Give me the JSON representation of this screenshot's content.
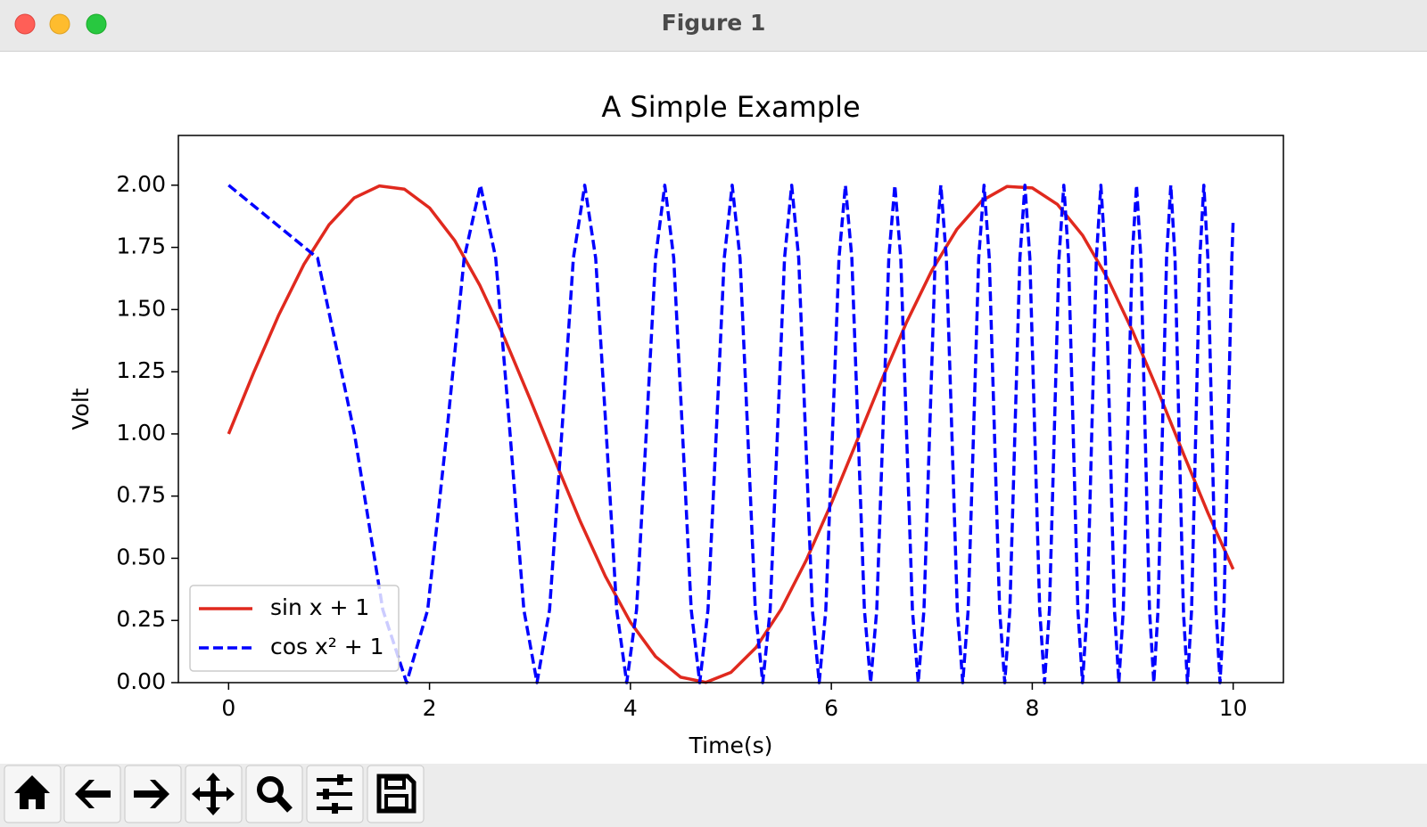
{
  "window": {
    "title": "Figure 1"
  },
  "chart_data": {
    "type": "line",
    "title": "A Simple Example",
    "x_label": "Time(s)",
    "y_label": "Volt",
    "xlim": [
      -0.5,
      10.5
    ],
    "ylim": [
      0,
      2.2
    ],
    "xticks": [
      0,
      2,
      4,
      6,
      8,
      10
    ],
    "yticks": [
      {
        "value": 0,
        "label": "0.00"
      },
      {
        "value": 0.25,
        "label": "0.25"
      },
      {
        "value": 0.5,
        "label": "0.50"
      },
      {
        "value": 0.75,
        "label": "0.75"
      },
      {
        "value": 1,
        "label": "1.00"
      },
      {
        "value": 1.25,
        "label": "1.25"
      },
      {
        "value": 1.5,
        "label": "1.50"
      },
      {
        "value": 1.75,
        "label": "1.75"
      },
      {
        "value": 2,
        "label": "2.00"
      }
    ],
    "grid": false,
    "legend": "lower left",
    "series": [
      {
        "name": "sin x + 1",
        "color": "#e0291e",
        "linestyle": "solid",
        "x": [
          0,
          0.25,
          0.5,
          0.75,
          1,
          1.25,
          1.5,
          1.75,
          2,
          2.25,
          2.5,
          2.75,
          3,
          3.25,
          3.5,
          3.75,
          4,
          4.25,
          4.5,
          4.75,
          5,
          5.25,
          5.5,
          5.75,
          6,
          6.25,
          6.5,
          6.75,
          7,
          7.25,
          7.5,
          7.75,
          8,
          8.25,
          8.5,
          8.75,
          9,
          9.25,
          9.5,
          9.75,
          10
        ],
        "values": [
          1,
          1.247,
          1.479,
          1.682,
          1.841,
          1.949,
          1.997,
          1.984,
          1.909,
          1.778,
          1.598,
          1.382,
          1.141,
          0.892,
          0.649,
          0.428,
          0.243,
          0.105,
          0.022,
          0.001,
          0.041,
          0.141,
          0.295,
          0.492,
          0.721,
          0.967,
          1.215,
          1.45,
          1.657,
          1.823,
          1.938,
          1.995,
          1.989,
          1.923,
          1.799,
          1.625,
          1.412,
          1.174,
          0.925,
          0.681,
          0.456
        ]
      },
      {
        "name": "cos x² + 1",
        "color": "#0000ff",
        "linestyle": "dashed",
        "x": [
          0,
          0.886,
          1.253,
          1.535,
          1.772,
          1.982,
          2.171,
          2.345,
          2.507,
          2.659,
          2.802,
          2.939,
          3.07,
          3.195,
          3.316,
          3.432,
          3.545,
          3.654,
          3.76,
          3.863,
          3.963,
          4.061,
          4.157,
          4.25,
          4.342,
          4.431,
          4.519,
          4.605,
          4.69,
          4.772,
          4.854,
          4.934,
          5.013,
          5.091,
          5.168,
          5.243,
          5.317,
          5.391,
          5.463,
          5.534,
          5.605,
          5.675,
          5.743,
          5.811,
          5.879,
          5.945,
          6.011,
          6.076,
          6.14,
          6.204,
          6.267,
          6.329,
          6.391,
          6.452,
          6.512,
          6.572,
          6.632,
          6.691,
          6.749,
          6.807,
          6.865,
          6.922,
          6.978,
          7.034,
          7.09,
          7.145,
          7.2,
          7.254,
          7.308,
          7.362,
          7.415,
          7.467,
          7.52,
          7.572,
          7.624,
          7.675,
          7.726,
          7.777,
          7.827,
          7.877,
          7.927,
          7.976,
          8.025,
          8.074,
          8.122,
          8.171,
          8.219,
          8.266,
          8.314,
          8.361,
          8.408,
          8.454,
          8.5,
          8.547,
          8.592,
          8.638,
          8.683,
          8.728,
          8.773,
          8.818,
          8.862,
          8.906,
          8.95,
          8.994,
          9.038,
          9.081,
          9.124,
          9.167,
          9.21,
          9.252,
          9.295,
          9.337,
          9.379,
          9.421,
          9.462,
          9.504,
          9.545,
          9.586,
          9.627,
          9.668,
          9.708,
          9.748,
          9.789,
          9.829,
          9.869,
          9.908,
          9.948,
          9.987,
          10
        ],
        "values": [
          2,
          1.707,
          1,
          0.293,
          0,
          0.293,
          1,
          1.707,
          2,
          1.707,
          1,
          0.293,
          0,
          0.293,
          1,
          1.707,
          2,
          1.707,
          1,
          0.293,
          0,
          0.293,
          1,
          1.707,
          2,
          1.707,
          1,
          0.293,
          0,
          0.293,
          1,
          1.707,
          2,
          1.707,
          1,
          0.293,
          0,
          0.293,
          1,
          1.707,
          2,
          1.707,
          1,
          0.293,
          0,
          0.293,
          1,
          1.707,
          2,
          1.707,
          1,
          0.293,
          0,
          0.293,
          1,
          1.707,
          2,
          1.707,
          1,
          0.293,
          0,
          0.293,
          1,
          1.707,
          2,
          1.707,
          1,
          0.293,
          0,
          0.293,
          1,
          1.707,
          2,
          1.707,
          1,
          0.293,
          0,
          0.293,
          1,
          1.707,
          2,
          1.707,
          1,
          0.293,
          0,
          0.293,
          1,
          1.707,
          2,
          1.707,
          1,
          0.293,
          0,
          0.293,
          1,
          1.707,
          2,
          1.707,
          1,
          0.293,
          0,
          0.293,
          1,
          1.707,
          2,
          1.707,
          1,
          0.293,
          0,
          0.293,
          1,
          1.707,
          2,
          1.707,
          1,
          0.293,
          0,
          0.293,
          1,
          1.707,
          2,
          1.707,
          1,
          0.293,
          0,
          0.293,
          1,
          1.707,
          1.862
        ]
      }
    ]
  }
}
